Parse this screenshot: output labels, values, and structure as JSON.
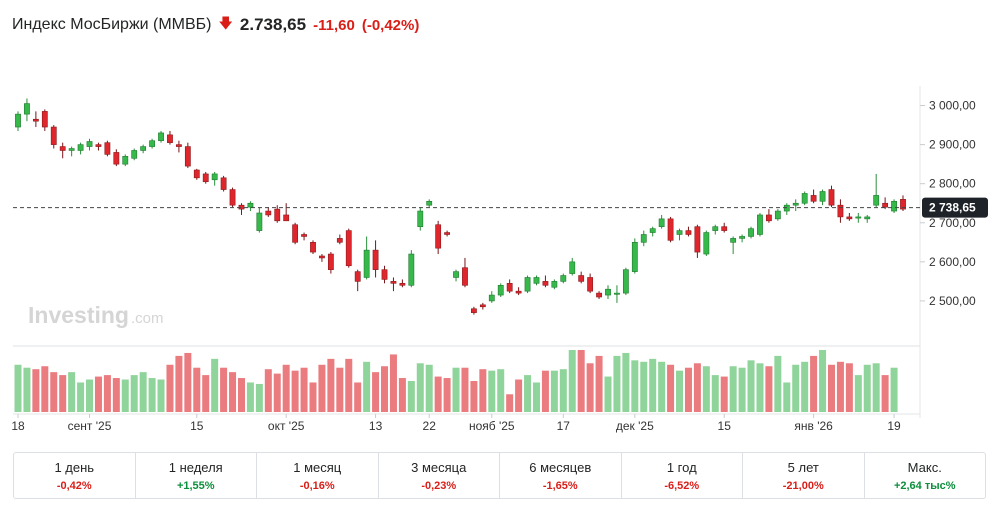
{
  "header": {
    "title": "Индекс МосБиржи (MMBБ)",
    "price": "2.738,65",
    "change": "-11,60",
    "change_pct": "(-0,42%)"
  },
  "colors": {
    "up": "#36b84a",
    "down": "#e0262d",
    "up_vol": "#8fd49a",
    "down_vol": "#ea7b7f"
  },
  "watermark": {
    "brand": "Investing",
    "suffix": ".com"
  },
  "chart_data": {
    "type": "candlestick",
    "title": "Индекс МосБиржи (MMBБ)",
    "last_price": 2738.65,
    "last_price_label": "2 738,65",
    "ylim": [
      2400,
      3050
    ],
    "y_ticks": [
      3000,
      2900,
      2800,
      2700,
      2600,
      2500
    ],
    "y_tick_labels": [
      "3 000,00",
      "2 900,00",
      "2 800,00",
      "2 700,00",
      "2 600,00",
      "2 500,00"
    ],
    "x_tick_labels": [
      {
        "label": "18",
        "idx": 0
      },
      {
        "label": "сент '25",
        "idx": 8
      },
      {
        "label": "15",
        "idx": 20
      },
      {
        "label": "окт '25",
        "idx": 30
      },
      {
        "label": "13",
        "idx": 40
      },
      {
        "label": "22",
        "idx": 46
      },
      {
        "label": "нояб '25",
        "idx": 53
      },
      {
        "label": "17",
        "idx": 61
      },
      {
        "label": "дек '25",
        "idx": 69
      },
      {
        "label": "15",
        "idx": 79
      },
      {
        "label": "янв '26",
        "idx": 89
      },
      {
        "label": "19",
        "idx": 98
      }
    ],
    "candles": [
      [
        2945,
        2985,
        2935,
        2978
      ],
      [
        2978,
        3018,
        2960,
        3005
      ],
      [
        2965,
        2985,
        2945,
        2960
      ],
      [
        2985,
        2990,
        2935,
        2945
      ],
      [
        2945,
        2950,
        2890,
        2900
      ],
      [
        2895,
        2905,
        2865,
        2885
      ],
      [
        2885,
        2895,
        2870,
        2890
      ],
      [
        2885,
        2905,
        2875,
        2900
      ],
      [
        2895,
        2915,
        2885,
        2908
      ],
      [
        2900,
        2905,
        2885,
        2895
      ],
      [
        2905,
        2910,
        2870,
        2875
      ],
      [
        2880,
        2888,
        2845,
        2850
      ],
      [
        2850,
        2875,
        2845,
        2870
      ],
      [
        2865,
        2890,
        2860,
        2885
      ],
      [
        2885,
        2900,
        2878,
        2895
      ],
      [
        2895,
        2915,
        2890,
        2910
      ],
      [
        2910,
        2935,
        2905,
        2930
      ],
      [
        2925,
        2935,
        2900,
        2905
      ],
      [
        2900,
        2910,
        2880,
        2895
      ],
      [
        2895,
        2905,
        2840,
        2845
      ],
      [
        2835,
        2838,
        2810,
        2815
      ],
      [
        2825,
        2830,
        2800,
        2805
      ],
      [
        2810,
        2830,
        2795,
        2825
      ],
      [
        2815,
        2820,
        2780,
        2785
      ],
      [
        2785,
        2790,
        2740,
        2745
      ],
      [
        2745,
        2750,
        2720,
        2735
      ],
      [
        2740,
        2755,
        2730,
        2750
      ],
      [
        2680,
        2740,
        2675,
        2725
      ],
      [
        2730,
        2740,
        2715,
        2720
      ],
      [
        2735,
        2745,
        2700,
        2705
      ],
      [
        2720,
        2750,
        2710,
        2705
      ],
      [
        2695,
        2700,
        2645,
        2650
      ],
      [
        2670,
        2675,
        2655,
        2665
      ],
      [
        2650,
        2655,
        2620,
        2625
      ],
      [
        2615,
        2620,
        2600,
        2610
      ],
      [
        2620,
        2625,
        2570,
        2580
      ],
      [
        2660,
        2670,
        2645,
        2650
      ],
      [
        2680,
        2685,
        2585,
        2590
      ],
      [
        2575,
        2580,
        2525,
        2550
      ],
      [
        2560,
        2665,
        2555,
        2630
      ],
      [
        2630,
        2655,
        2560,
        2580
      ],
      [
        2580,
        2590,
        2545,
        2555
      ],
      [
        2550,
        2560,
        2525,
        2545
      ],
      [
        2545,
        2555,
        2535,
        2540
      ],
      [
        2540,
        2630,
        2535,
        2620
      ],
      [
        2690,
        2740,
        2680,
        2730
      ],
      [
        2745,
        2760,
        2740,
        2755
      ],
      [
        2695,
        2705,
        2620,
        2635
      ],
      [
        2675,
        2680,
        2665,
        2670
      ],
      [
        2560,
        2580,
        2550,
        2575
      ],
      [
        2585,
        2610,
        2535,
        2540
      ],
      [
        2480,
        2485,
        2465,
        2470
      ],
      [
        2490,
        2495,
        2478,
        2485
      ],
      [
        2500,
        2525,
        2495,
        2515
      ],
      [
        2515,
        2545,
        2510,
        2540
      ],
      [
        2545,
        2555,
        2520,
        2525
      ],
      [
        2525,
        2535,
        2515,
        2520
      ],
      [
        2525,
        2565,
        2520,
        2560
      ],
      [
        2545,
        2565,
        2540,
        2560
      ],
      [
        2550,
        2565,
        2535,
        2540
      ],
      [
        2535,
        2555,
        2530,
        2550
      ],
      [
        2550,
        2570,
        2545,
        2565
      ],
      [
        2570,
        2610,
        2565,
        2600
      ],
      [
        2565,
        2575,
        2545,
        2550
      ],
      [
        2560,
        2570,
        2520,
        2525
      ],
      [
        2520,
        2525,
        2505,
        2510
      ],
      [
        2515,
        2540,
        2505,
        2530
      ],
      [
        2520,
        2540,
        2495,
        2520
      ],
      [
        2520,
        2585,
        2515,
        2580
      ],
      [
        2575,
        2660,
        2570,
        2650
      ],
      [
        2650,
        2680,
        2640,
        2670
      ],
      [
        2675,
        2690,
        2665,
        2685
      ],
      [
        2690,
        2720,
        2685,
        2710
      ],
      [
        2710,
        2715,
        2650,
        2655
      ],
      [
        2670,
        2685,
        2655,
        2680
      ],
      [
        2680,
        2690,
        2665,
        2670
      ],
      [
        2690,
        2695,
        2610,
        2625
      ],
      [
        2620,
        2680,
        2615,
        2675
      ],
      [
        2680,
        2695,
        2670,
        2690
      ],
      [
        2690,
        2700,
        2675,
        2680
      ],
      [
        2650,
        2665,
        2620,
        2660
      ],
      [
        2660,
        2670,
        2650,
        2665
      ],
      [
        2665,
        2690,
        2660,
        2685
      ],
      [
        2670,
        2725,
        2665,
        2720
      ],
      [
        2720,
        2735,
        2700,
        2705
      ],
      [
        2710,
        2735,
        2705,
        2730
      ],
      [
        2730,
        2750,
        2720,
        2745
      ],
      [
        2745,
        2760,
        2730,
        2750
      ],
      [
        2750,
        2780,
        2745,
        2775
      ],
      [
        2770,
        2785,
        2750,
        2755
      ],
      [
        2755,
        2785,
        2745,
        2780
      ],
      [
        2785,
        2795,
        2740,
        2745
      ],
      [
        2745,
        2760,
        2700,
        2715
      ],
      [
        2715,
        2725,
        2705,
        2710
      ],
      [
        2715,
        2725,
        2700,
        2715
      ],
      [
        2710,
        2720,
        2700,
        2715
      ],
      [
        2745,
        2825,
        2740,
        2770
      ],
      [
        2750,
        2765,
        2735,
        2740
      ],
      [
        2730,
        2760,
        2725,
        2755
      ],
      [
        2760,
        2770,
        2730,
        2735
      ]
    ]
  },
  "volume": [
    32,
    30,
    29,
    31,
    27,
    25,
    27,
    20,
    22,
    24,
    25,
    23,
    22,
    25,
    27,
    23,
    22,
    32,
    38,
    40,
    30,
    25,
    36,
    30,
    27,
    23,
    20,
    19,
    29,
    26,
    32,
    28,
    30,
    20,
    32,
    36,
    30,
    36,
    20,
    34,
    27,
    31,
    39,
    23,
    21,
    33,
    32,
    24,
    23,
    30,
    30,
    21,
    29,
    28,
    29,
    12,
    22,
    25,
    20,
    28,
    28,
    29,
    42,
    42,
    33,
    38,
    24,
    38,
    40,
    35,
    34,
    36,
    34,
    32,
    28,
    30,
    33,
    31,
    25,
    24,
    31,
    30,
    35,
    33,
    31,
    38,
    20,
    32,
    34,
    38,
    42,
    32,
    34,
    33,
    25,
    32,
    33,
    25,
    30
  ],
  "periods": [
    {
      "label": "1 день",
      "value": "-0,42%",
      "dir": "neg"
    },
    {
      "label": "1 неделя",
      "value": "+1,55%",
      "dir": "pos"
    },
    {
      "label": "1 месяц",
      "value": "-0,16%",
      "dir": "neg"
    },
    {
      "label": "3 месяца",
      "value": "-0,23%",
      "dir": "neg"
    },
    {
      "label": "6 месяцев",
      "value": "-1,65%",
      "dir": "neg"
    },
    {
      "label": "1 год",
      "value": "-6,52%",
      "dir": "neg"
    },
    {
      "label": "5 лет",
      "value": "-21,00%",
      "dir": "neg"
    },
    {
      "label": "Макс.",
      "value": "+2,64 тыс%",
      "dir": "pos"
    }
  ]
}
